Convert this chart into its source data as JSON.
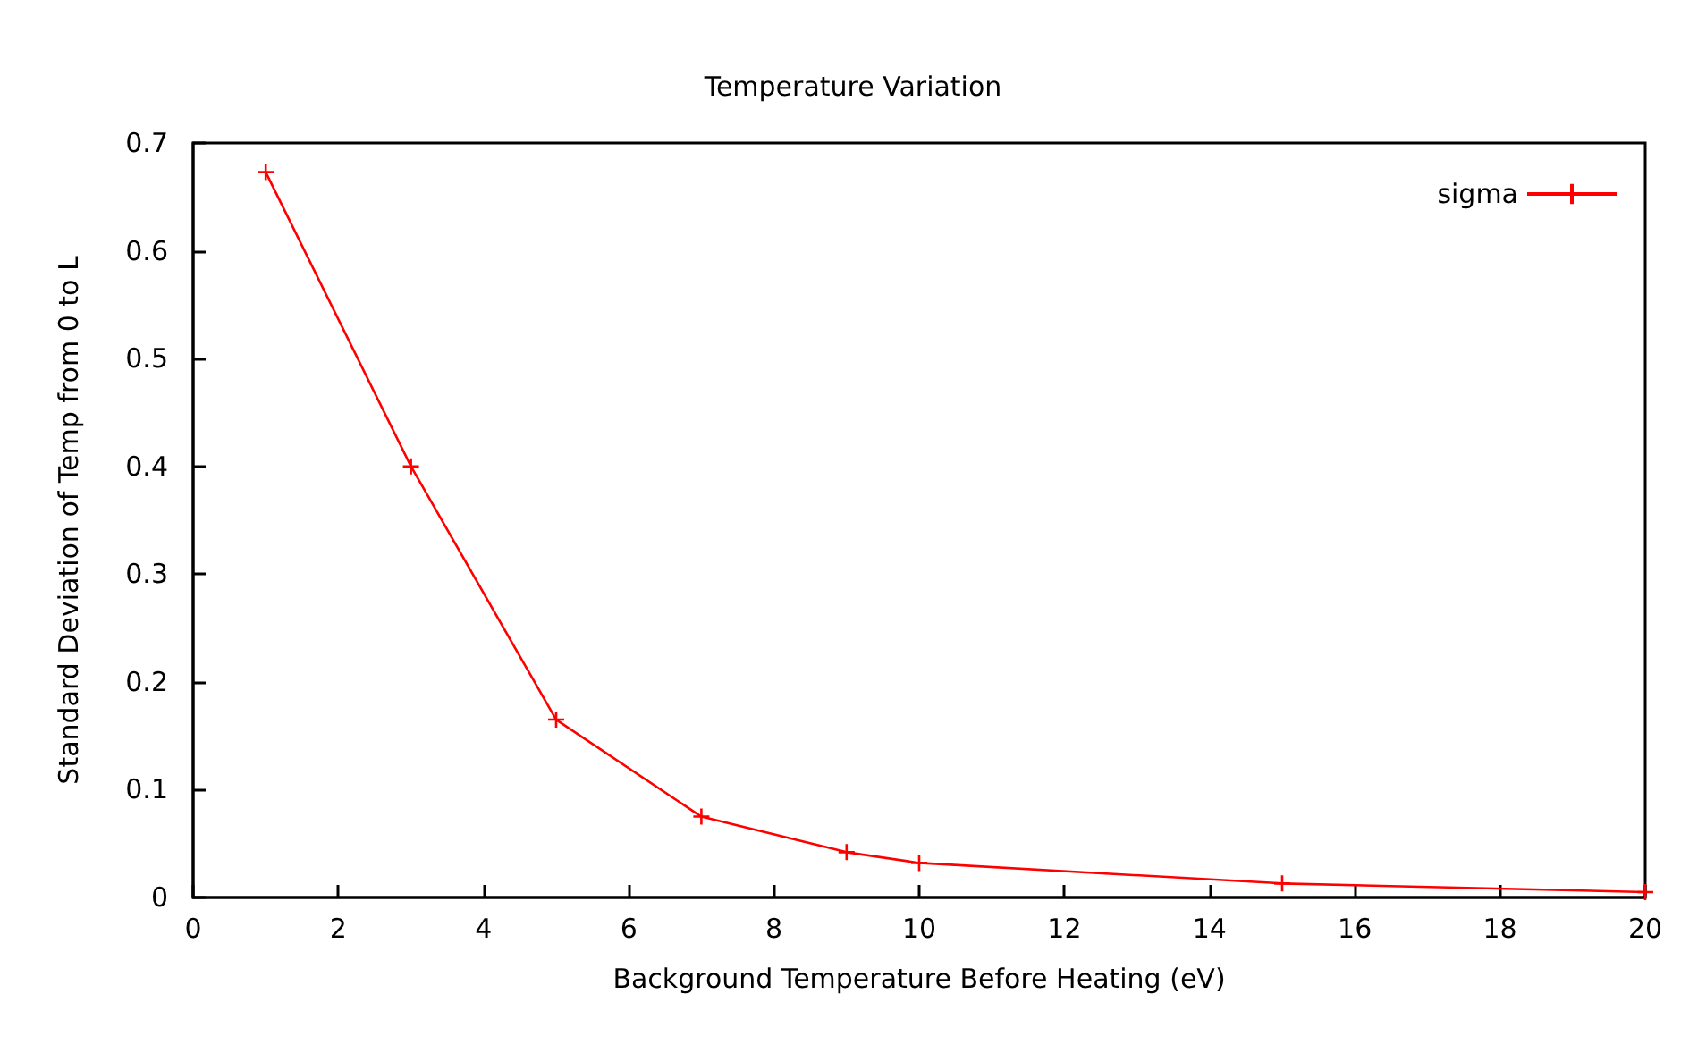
{
  "chart_data": {
    "type": "line",
    "title": "Temperature Variation",
    "xlabel": "Background Temperature Before Heating (eV)",
    "ylabel": "Standard Deviation of Temp from 0 to L",
    "x": [
      1,
      3,
      5,
      7,
      9,
      10,
      15,
      20
    ],
    "series": [
      {
        "name": "sigma",
        "color": "#ff0000",
        "values": [
          0.673,
          0.4,
          0.165,
          0.075,
          0.042,
          0.032,
          0.013,
          0.005
        ]
      }
    ],
    "xlim": [
      0,
      20
    ],
    "xticks": [
      0,
      2,
      4,
      6,
      8,
      10,
      12,
      14,
      16,
      18,
      20
    ],
    "ylim": [
      0,
      0.7
    ],
    "yticks": [
      0,
      0.1,
      0.2,
      0.3,
      0.4,
      0.5,
      0.6,
      0.7
    ],
    "grid": false,
    "legend": "top right",
    "marker": "cross",
    "line_style": "solid"
  }
}
